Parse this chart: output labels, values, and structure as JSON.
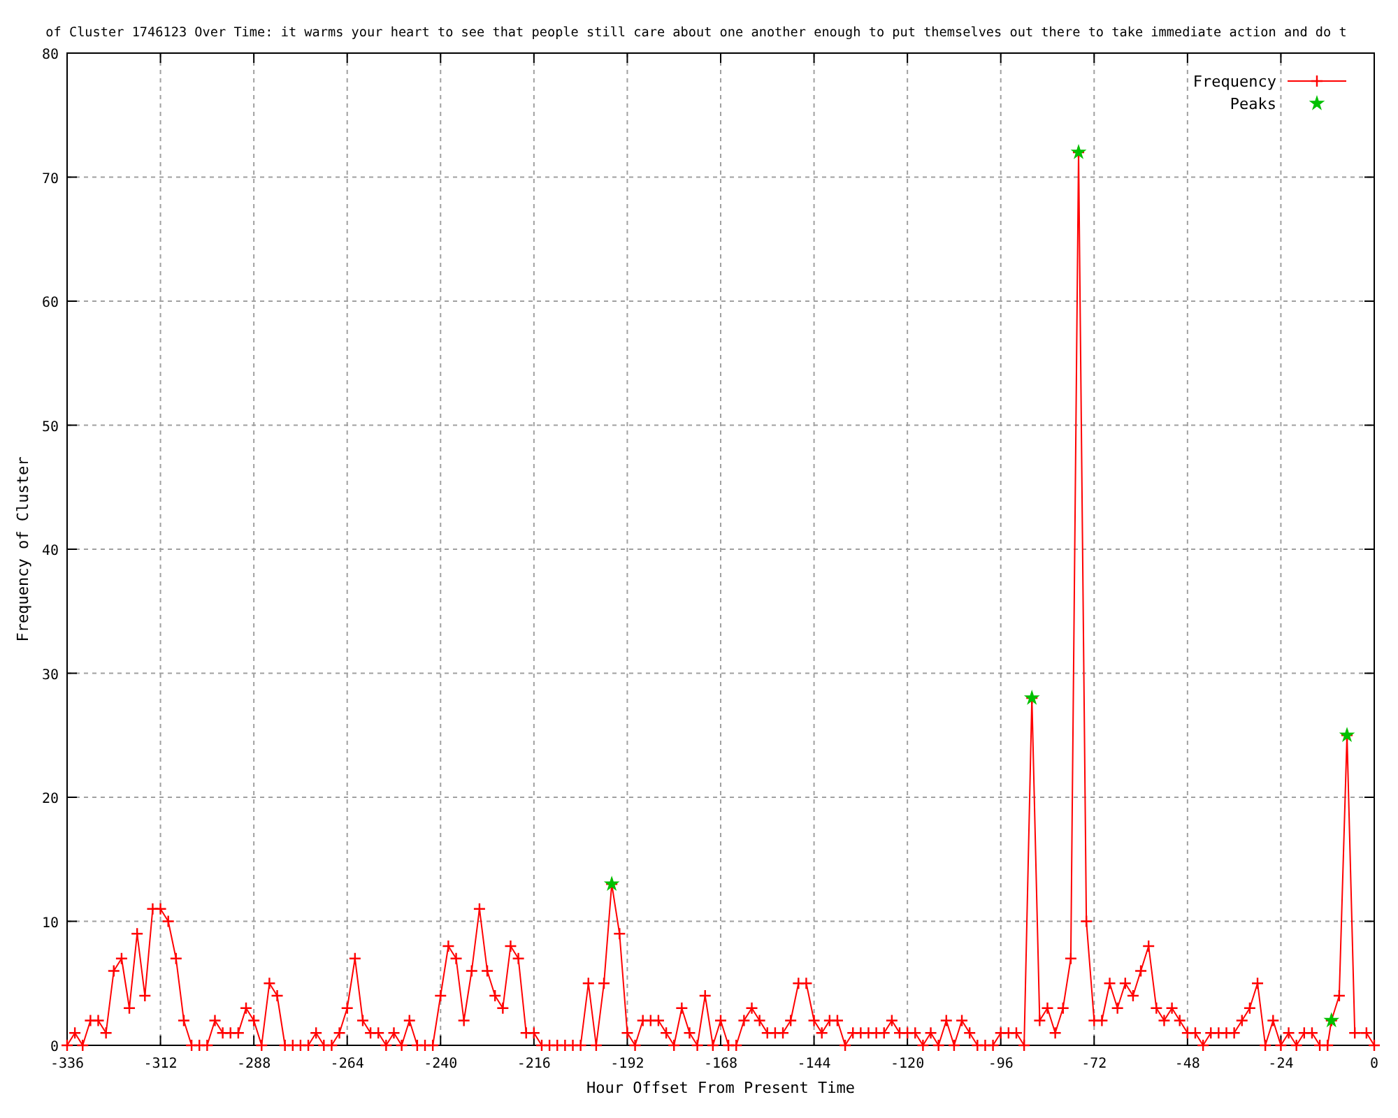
{
  "chart_data": {
    "type": "line",
    "title": "of Cluster 1746123 Over Time: it warms your heart to see that people still care about one another enough to put themselves out there to take immediate action and do t",
    "xlabel": "Hour Offset From Present Time",
    "ylabel": "Frequency of Cluster",
    "xlim": [
      -336,
      0
    ],
    "xticks": [
      -336,
      -312,
      -288,
      -264,
      -240,
      -216,
      -192,
      -168,
      -144,
      -120,
      -96,
      -72,
      -48,
      -24,
      0
    ],
    "ylim": [
      0,
      80
    ],
    "yticks": [
      0,
      10,
      20,
      30,
      40,
      50,
      60,
      70,
      80
    ],
    "grid": true,
    "legend": "top right",
    "series": [
      {
        "name": "Frequency",
        "color": "#ff0000",
        "marker": "cross",
        "line_style": "solid",
        "x": [
          -336,
          -334,
          -332,
          -330,
          -328,
          -326,
          -324,
          -322,
          -320,
          -318,
          -316,
          -314,
          -312,
          -310,
          -308,
          -306,
          -304,
          -302,
          -300,
          -298,
          -296,
          -294,
          -292,
          -290,
          -288,
          -286,
          -284,
          -282,
          -280,
          -278,
          -276,
          -274,
          -272,
          -270,
          -268,
          -266,
          -264,
          -262,
          -260,
          -258,
          -256,
          -254,
          -252,
          -250,
          -248,
          -246,
          -244,
          -242,
          -240,
          -238,
          -236,
          -234,
          -232,
          -230,
          -228,
          -226,
          -224,
          -222,
          -220,
          -218,
          -216,
          -214,
          -212,
          -210,
          -208,
          -206,
          -204,
          -202,
          -200,
          -198,
          -196,
          -194,
          -192,
          -190,
          -188,
          -186,
          -184,
          -182,
          -180,
          -178,
          -176,
          -174,
          -172,
          -170,
          -168,
          -166,
          -164,
          -162,
          -160,
          -158,
          -156,
          -154,
          -152,
          -150,
          -148,
          -146,
          -144,
          -142,
          -140,
          -138,
          -136,
          -134,
          -132,
          -130,
          -128,
          -126,
          -124,
          -122,
          -120,
          -118,
          -116,
          -114,
          -112,
          -110,
          -108,
          -106,
          -104,
          -102,
          -100,
          -98,
          -96,
          -94,
          -92,
          -90,
          -88,
          -86,
          -84,
          -82,
          -80,
          -78,
          -76,
          -74,
          -72,
          -70,
          -68,
          -66,
          -64,
          -62,
          -60,
          -58,
          -56,
          -54,
          -52,
          -50,
          -48,
          -46,
          -44,
          -42,
          -40,
          -38,
          -36,
          -34,
          -32,
          -30,
          -28,
          -26,
          -24,
          -22,
          -20,
          -18,
          -16,
          -14,
          -12,
          -11,
          -9,
          -7,
          -5,
          -2,
          0
        ],
        "values": [
          0,
          1,
          0,
          2,
          2,
          1,
          6,
          7,
          3,
          9,
          4,
          11,
          11,
          10,
          7,
          2,
          0,
          0,
          0,
          2,
          1,
          1,
          1,
          3,
          2,
          0,
          5,
          4,
          0,
          0,
          0,
          0,
          1,
          0,
          0,
          1,
          3,
          7,
          2,
          1,
          1,
          0,
          1,
          0,
          2,
          0,
          0,
          0,
          4,
          8,
          7,
          2,
          6,
          11,
          6,
          4,
          3,
          8,
          7,
          1,
          1,
          0,
          0,
          0,
          0,
          0,
          0,
          5,
          0,
          5,
          13,
          9,
          1,
          0,
          2,
          2,
          2,
          1,
          0,
          3,
          1,
          0,
          4,
          0,
          2,
          0,
          0,
          2,
          3,
          2,
          1,
          1,
          1,
          2,
          5,
          5,
          2,
          1,
          2,
          2,
          0,
          1,
          1,
          1,
          1,
          1,
          2,
          1,
          1,
          1,
          0,
          1,
          0,
          2,
          0,
          2,
          1,
          0,
          0,
          0,
          1,
          1,
          1,
          0,
          28,
          2,
          3,
          1,
          3,
          7,
          72,
          10,
          2,
          2,
          5,
          3,
          5,
          4,
          6,
          8,
          3,
          2,
          3,
          2,
          1,
          1,
          0,
          1,
          1,
          1,
          1,
          2,
          3,
          5,
          0,
          2,
          0,
          1,
          0,
          1,
          1,
          0,
          0,
          2,
          4,
          25,
          1,
          1,
          0
        ]
      },
      {
        "name": "Peaks",
        "type": "scatter",
        "color": "#00c000",
        "marker": "star",
        "x": [
          -196,
          -88,
          -76,
          -11,
          -7
        ],
        "values": [
          13,
          28,
          72,
          2,
          25
        ]
      }
    ]
  }
}
